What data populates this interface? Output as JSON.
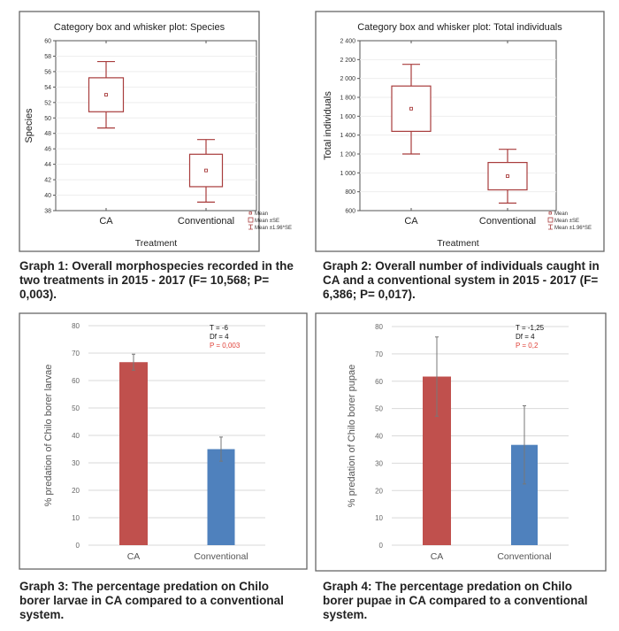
{
  "chart_data": [
    {
      "type": "box",
      "title": "Category box and whisker plot: Species",
      "xlabel": "Treatment",
      "ylabel": "Species",
      "ylim": [
        38,
        60
      ],
      "yticks": [
        38,
        40,
        42,
        44,
        46,
        48,
        50,
        52,
        54,
        56,
        58,
        60
      ],
      "categories": [
        "CA",
        "Conventional"
      ],
      "mean": [
        53.0,
        43.2
      ],
      "se_low": [
        50.8,
        41.1
      ],
      "se_high": [
        55.2,
        45.3
      ],
      "ci_low": [
        48.7,
        39.1
      ],
      "ci_high": [
        57.3,
        47.2
      ],
      "legend": [
        "Mean",
        "Mean ±SE",
        "Mean ±1.96*SE"
      ],
      "legend_placement": "bottom-right",
      "color": "#a83c3c",
      "caption": "Graph 1: Overall morphospecies recorded in the two treatments in 2015 - 2017 (F= 10,568; P= 0,003)."
    },
    {
      "type": "box",
      "title": "Category box and whisker plot: Total individuals",
      "xlabel": "Treatment",
      "ylabel": "Total individuals",
      "ylim": [
        600,
        2400
      ],
      "yticks": [
        600,
        800,
        1000,
        1200,
        1400,
        1600,
        1800,
        2000,
        2200,
        2400
      ],
      "ytick_labels": [
        "600",
        "800",
        "1 000",
        "1 200",
        "1 400",
        "1 600",
        "1 800",
        "2 000",
        "2 200",
        "2 400"
      ],
      "categories": [
        "CA",
        "Conventional"
      ],
      "mean": [
        1680,
        965
      ],
      "se_low": [
        1440,
        820
      ],
      "se_high": [
        1920,
        1110
      ],
      "ci_low": [
        1200,
        680
      ],
      "ci_high": [
        2150,
        1250
      ],
      "legend": [
        "Mean",
        "Mean ±SE",
        "Mean ±1.96*SE"
      ],
      "legend_placement": "bottom-right",
      "color": "#a83c3c",
      "caption": "Graph 2: Overall number of individuals caught in CA and a conventional system in 2015 - 2017 (F= 6,386; P= 0,017)."
    },
    {
      "type": "bar",
      "ylabel": "% predation of Chilo borer larvae",
      "ylim": [
        0,
        80
      ],
      "yticks": [
        0,
        10,
        20,
        30,
        40,
        50,
        60,
        70,
        80
      ],
      "grid": true,
      "categories": [
        "CA",
        "Conventional"
      ],
      "values": [
        66.7,
        35.0
      ],
      "err_low": [
        63.8,
        30.6
      ],
      "err_high": [
        69.6,
        39.4
      ],
      "colors": [
        "#c0504d",
        "#4f81bd"
      ],
      "annotations": [
        "T = -6",
        "Df = 4",
        "P = 0,003"
      ],
      "p_color": "#e0433a",
      "caption": "Graph 3: The percentage predation on Chilo borer larvae in CA compared to a conventional system."
    },
    {
      "type": "bar",
      "ylabel": "% predation of Chilo borer pupae",
      "ylim": [
        0,
        80
      ],
      "yticks": [
        0,
        10,
        20,
        30,
        40,
        50,
        60,
        70,
        80
      ],
      "grid": true,
      "categories": [
        "CA",
        "Conventional"
      ],
      "values": [
        61.7,
        36.7
      ],
      "err_low": [
        47.2,
        22.4
      ],
      "err_high": [
        76.2,
        51.0
      ],
      "colors": [
        "#c0504d",
        "#4f81bd"
      ],
      "annotations": [
        "T = -1,25",
        "Df = 4",
        "P = 0,2"
      ],
      "p_color": "#e0433a",
      "caption": "Graph 4: The percentage predation on Chilo borer pupae in CA compared to a conventional system."
    }
  ]
}
